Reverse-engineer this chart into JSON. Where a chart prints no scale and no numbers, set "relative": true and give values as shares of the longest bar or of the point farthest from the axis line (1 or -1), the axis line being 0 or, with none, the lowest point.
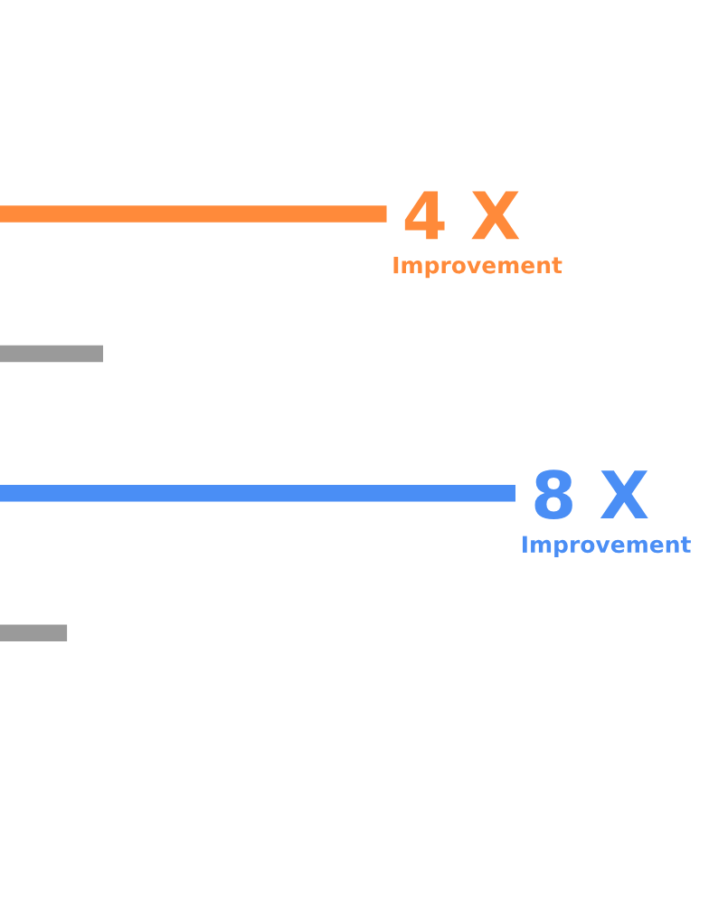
{
  "chart_data": {
    "type": "bar",
    "orientation": "horizontal",
    "relative": true,
    "categories": [
      null,
      null,
      null,
      null
    ],
    "values": [
      0.75,
      0.2,
      1,
      0.13
    ],
    "colors": [
      "#ff8a3a",
      "#9a9a9a",
      "#4a8ef5",
      "#9a9a9a"
    ],
    "annotations": [
      "4 X",
      "Improvement",
      "8 X",
      "Improvement"
    ]
  }
}
